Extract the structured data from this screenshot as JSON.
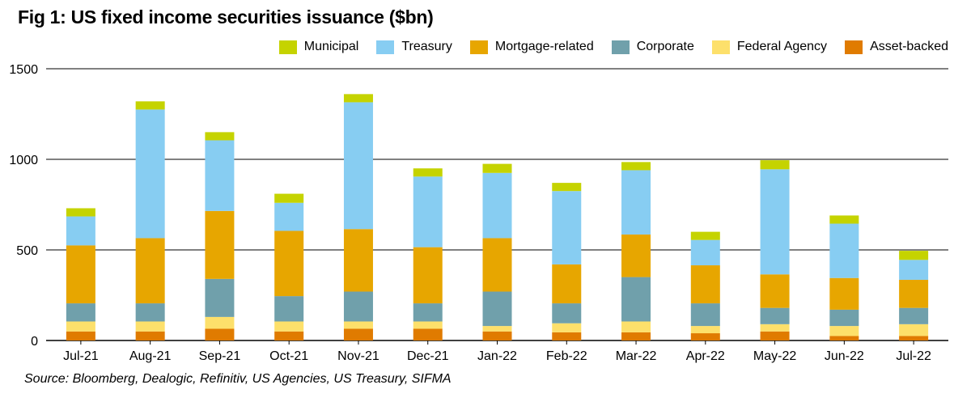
{
  "title": "Fig 1: US fixed income securities issuance ($bn)",
  "source": "Source: Bloomberg, Dealogic, Refinitiv, US Agencies, US Treasury, SIFMA",
  "legend": [
    {
      "name": "Municipal",
      "color": "#c5d300"
    },
    {
      "name": "Treasury",
      "color": "#87cdf2"
    },
    {
      "name": "Mortgage-related",
      "color": "#e7a600"
    },
    {
      "name": "Corporate",
      "color": "#70a0ab"
    },
    {
      "name": "Federal Agency",
      "color": "#fde06b"
    },
    {
      "name": "Asset-backed",
      "color": "#e07b00"
    }
  ],
  "chart_data": {
    "type": "bar",
    "stacked": true,
    "title": "Fig 1: US fixed income securities issuance ($bn)",
    "xlabel": "",
    "ylabel": "",
    "ylim": [
      0,
      1500
    ],
    "yticks": [
      0,
      500,
      1000,
      1500
    ],
    "grid": true,
    "legend_position": "top-right",
    "categories": [
      "Jul-21",
      "Aug-21",
      "Sep-21",
      "Oct-21",
      "Nov-21",
      "Dec-21",
      "Jan-22",
      "Feb-22",
      "Mar-22",
      "Apr-22",
      "May-22",
      "Jun-22",
      "Jul-22"
    ],
    "series": [
      {
        "name": "Asset-backed",
        "color": "#e07b00",
        "values": [
          50,
          50,
          65,
          50,
          65,
          65,
          50,
          45,
          45,
          40,
          50,
          25,
          25
        ]
      },
      {
        "name": "Federal Agency",
        "color": "#fde06b",
        "values": [
          55,
          55,
          65,
          55,
          40,
          40,
          30,
          50,
          60,
          40,
          40,
          55,
          65
        ]
      },
      {
        "name": "Corporate",
        "color": "#70a0ab",
        "values": [
          100,
          100,
          210,
          140,
          165,
          100,
          190,
          110,
          245,
          125,
          90,
          90,
          90
        ]
      },
      {
        "name": "Mortgage-related",
        "color": "#e7a600",
        "values": [
          320,
          360,
          375,
          360,
          345,
          310,
          295,
          215,
          235,
          210,
          185,
          175,
          155
        ]
      },
      {
        "name": "Treasury",
        "color": "#87cdf2",
        "values": [
          160,
          710,
          390,
          155,
          700,
          390,
          360,
          405,
          355,
          140,
          580,
          300,
          110
        ]
      },
      {
        "name": "Municipal",
        "color": "#c5d300",
        "values": [
          45,
          45,
          45,
          50,
          45,
          45,
          50,
          45,
          45,
          45,
          50,
          45,
          50
        ]
      }
    ]
  }
}
